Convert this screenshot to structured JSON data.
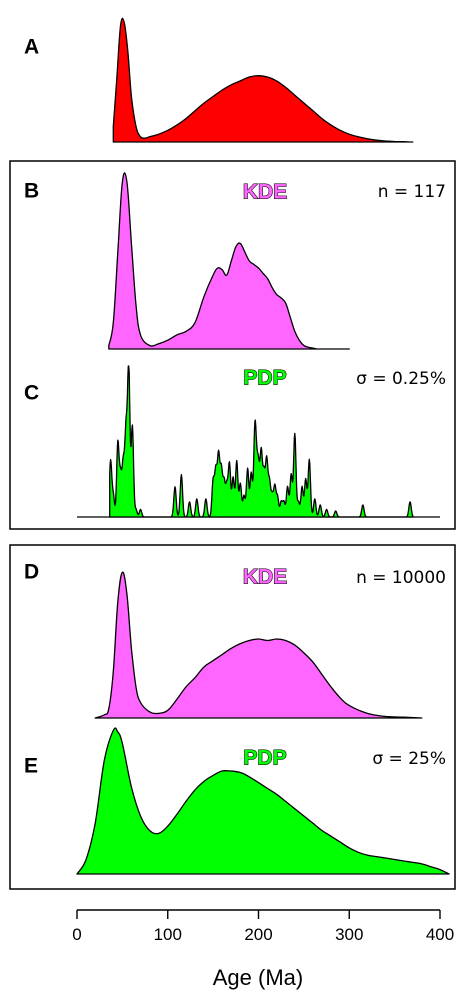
{
  "chart_data": {
    "type": "area",
    "xlabel": "Age (Ma)",
    "xlim": [
      0,
      400
    ],
    "xticks": [
      0,
      100,
      200,
      300,
      400
    ],
    "colors": {
      "A": "#ff0000",
      "KDE": "#ff66ff",
      "PDP": "#00ff00",
      "outline": "#000000"
    },
    "panels": [
      {
        "id": "A",
        "label": "A",
        "method": "",
        "annotation": "",
        "fill": "#ff0000",
        "x": [
          40,
          44,
          48,
          52,
          56,
          60,
          65,
          70,
          75,
          80,
          90,
          100,
          110,
          120,
          130,
          140,
          150,
          160,
          170,
          180,
          190,
          200,
          210,
          220,
          230,
          240,
          250,
          260,
          270,
          280,
          290,
          300,
          310,
          320,
          330,
          340,
          350,
          360,
          370
        ],
        "y": [
          0.12,
          0.5,
          0.9,
          0.92,
          0.7,
          0.35,
          0.12,
          0.04,
          0.03,
          0.04,
          0.06,
          0.09,
          0.13,
          0.18,
          0.24,
          0.3,
          0.35,
          0.4,
          0.44,
          0.47,
          0.5,
          0.51,
          0.5,
          0.47,
          0.42,
          0.36,
          0.3,
          0.24,
          0.18,
          0.13,
          0.09,
          0.06,
          0.04,
          0.025,
          0.014,
          0.008,
          0.004,
          0.002,
          0.0
        ]
      },
      {
        "id": "B",
        "label": "B",
        "method": "KDE",
        "annotation": "n = 117",
        "fill": "#ff66ff",
        "x": [
          35,
          40,
          45,
          50,
          55,
          60,
          65,
          70,
          80,
          90,
          100,
          110,
          120,
          130,
          140,
          150,
          155,
          160,
          165,
          170,
          175,
          180,
          185,
          190,
          195,
          200,
          205,
          210,
          215,
          220,
          225,
          230,
          235,
          240,
          245,
          250,
          255,
          260,
          265,
          270,
          280,
          290,
          300
        ],
        "y": [
          0.02,
          0.15,
          0.55,
          0.95,
          0.95,
          0.6,
          0.25,
          0.08,
          0.02,
          0.03,
          0.05,
          0.08,
          0.1,
          0.15,
          0.3,
          0.42,
          0.46,
          0.45,
          0.42,
          0.5,
          0.58,
          0.6,
          0.55,
          0.5,
          0.48,
          0.46,
          0.43,
          0.4,
          0.35,
          0.31,
          0.29,
          0.26,
          0.18,
          0.1,
          0.05,
          0.02,
          0.01,
          0.005,
          0.0,
          0.0,
          0.0,
          0.0,
          0.0
        ]
      },
      {
        "id": "C",
        "label": "C",
        "method": "PDP",
        "annotation": "σ = 0.25%",
        "fill": "#00ff00",
        "peaks_x": [
          37,
          40,
          45,
          48,
          51,
          54,
          57,
          61,
          65,
          70,
          108,
          115,
          124,
          132,
          142,
          150,
          153,
          156,
          159,
          162,
          165,
          168,
          172,
          176,
          180,
          184,
          188,
          192,
          196,
          198,
          200,
          203,
          206,
          209,
          212,
          215,
          218,
          221,
          225,
          228,
          232,
          236,
          240,
          244,
          248,
          252,
          256,
          262,
          268,
          275,
          285,
          315,
          367
        ],
        "peaks_y": [
          0.37,
          0.14,
          0.49,
          0.27,
          0.35,
          0.56,
          1.0,
          0.6,
          0.05,
          0.05,
          0.2,
          0.28,
          0.1,
          0.12,
          0.12,
          0.24,
          0.3,
          0.4,
          0.31,
          0.23,
          0.2,
          0.35,
          0.26,
          0.37,
          0.22,
          0.14,
          0.32,
          0.29,
          0.56,
          0.22,
          0.3,
          0.42,
          0.28,
          0.37,
          0.23,
          0.14,
          0.2,
          0.13,
          0.1,
          0.1,
          0.2,
          0.28,
          0.55,
          0.1,
          0.2,
          0.25,
          0.38,
          0.12,
          0.08,
          0.05,
          0.04,
          0.08,
          0.1
        ]
      },
      {
        "id": "D",
        "label": "D",
        "method": "KDE",
        "annotation": "n = 10000",
        "fill": "#ff66ff",
        "x": [
          20,
          30,
          35,
          40,
          45,
          50,
          55,
          60,
          65,
          70,
          80,
          90,
          100,
          110,
          120,
          130,
          140,
          150,
          160,
          170,
          180,
          190,
          200,
          210,
          220,
          230,
          240,
          250,
          260,
          270,
          280,
          290,
          300,
          320,
          340,
          360,
          380
        ],
        "y": [
          0.0,
          0.02,
          0.06,
          0.3,
          0.75,
          0.94,
          0.8,
          0.45,
          0.2,
          0.1,
          0.04,
          0.03,
          0.05,
          0.12,
          0.2,
          0.26,
          0.33,
          0.37,
          0.41,
          0.45,
          0.48,
          0.5,
          0.51,
          0.5,
          0.51,
          0.5,
          0.47,
          0.42,
          0.36,
          0.28,
          0.2,
          0.13,
          0.08,
          0.03,
          0.01,
          0.005,
          0.0
        ]
      },
      {
        "id": "E",
        "label": "E",
        "method": "PDP",
        "annotation": "σ = 25%",
        "fill": "#00ff00",
        "x": [
          0,
          10,
          20,
          30,
          40,
          45,
          50,
          60,
          70,
          80,
          90,
          100,
          110,
          120,
          130,
          140,
          150,
          160,
          170,
          180,
          190,
          200,
          210,
          220,
          230,
          240,
          250,
          260,
          270,
          280,
          290,
          300,
          310,
          320,
          330,
          340,
          350,
          360,
          370,
          380,
          390,
          400,
          410
        ],
        "y": [
          0.0,
          0.1,
          0.35,
          0.78,
          0.99,
          0.98,
          0.9,
          0.6,
          0.4,
          0.3,
          0.28,
          0.33,
          0.41,
          0.5,
          0.58,
          0.64,
          0.68,
          0.71,
          0.71,
          0.7,
          0.67,
          0.63,
          0.59,
          0.55,
          0.5,
          0.45,
          0.4,
          0.35,
          0.3,
          0.26,
          0.22,
          0.18,
          0.15,
          0.13,
          0.12,
          0.11,
          0.1,
          0.09,
          0.08,
          0.07,
          0.05,
          0.03,
          0.0
        ]
      }
    ]
  }
}
